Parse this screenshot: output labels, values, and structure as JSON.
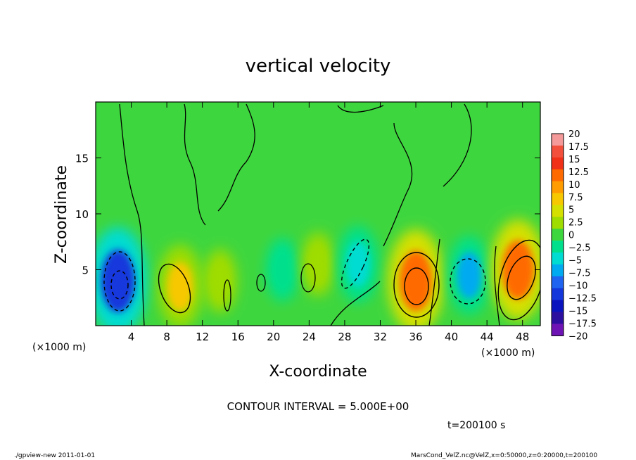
{
  "chart_data": {
    "type": "heatmap",
    "title": "vertical velocity",
    "xlabel": "X-coordinate",
    "ylabel": "Z-coordinate",
    "x_unit": "(×1000 m)",
    "x_ticks": [
      4,
      8,
      12,
      16,
      20,
      24,
      28,
      32,
      36,
      40,
      44,
      48
    ],
    "y_ticks": [
      5,
      10,
      15
    ],
    "xlim": [
      0,
      50
    ],
    "ylim": [
      0,
      20
    ],
    "colorbar_labels": [
      "20",
      "17.5",
      "15",
      "12.5",
      "10",
      "7.5",
      "5",
      "2.5",
      "0",
      "−2.5",
      "−5",
      "−7.5",
      "−10",
      "−12.5",
      "−15",
      "−17.5",
      "−20"
    ],
    "colorbar_colors": [
      "#f59a9a",
      "#f2503c",
      "#f03018",
      "#ff6a00",
      "#ff9c00",
      "#f7c800",
      "#d6e000",
      "#9fdc00",
      "#3ed63e",
      "#00e08c",
      "#00dcd2",
      "#00aaf0",
      "#1e64f0",
      "#1437dc",
      "#0a14be",
      "#2d0fa0",
      "#6e14b4"
    ],
    "contour_interval": "CONTOUR INTERVAL = 5.000E+00",
    "time_label": "t=200100 s",
    "features": [
      {
        "x": 2.5,
        "z": 4.0,
        "w": -13.0
      },
      {
        "x": 9.5,
        "z": 3.5,
        "w": 7.5
      },
      {
        "x": 14.0,
        "z": 4.0,
        "w": 3.0
      },
      {
        "x": 21.0,
        "z": 5.0,
        "w": -3.0
      },
      {
        "x": 25.0,
        "z": 5.5,
        "w": 3.0
      },
      {
        "x": 29.5,
        "z": 5.5,
        "w": -6.0
      },
      {
        "x": 36.0,
        "z": 4.0,
        "w": 12.0
      },
      {
        "x": 42.0,
        "z": 4.5,
        "w": -6.5
      },
      {
        "x": 47.5,
        "z": 5.0,
        "w": 11.5
      }
    ]
  },
  "footer": {
    "left": "./gpview-new   2011-01-01",
    "right": "MarsCond_VelZ.nc@VelZ,x=0:50000,z=0:20000,t=200100"
  }
}
